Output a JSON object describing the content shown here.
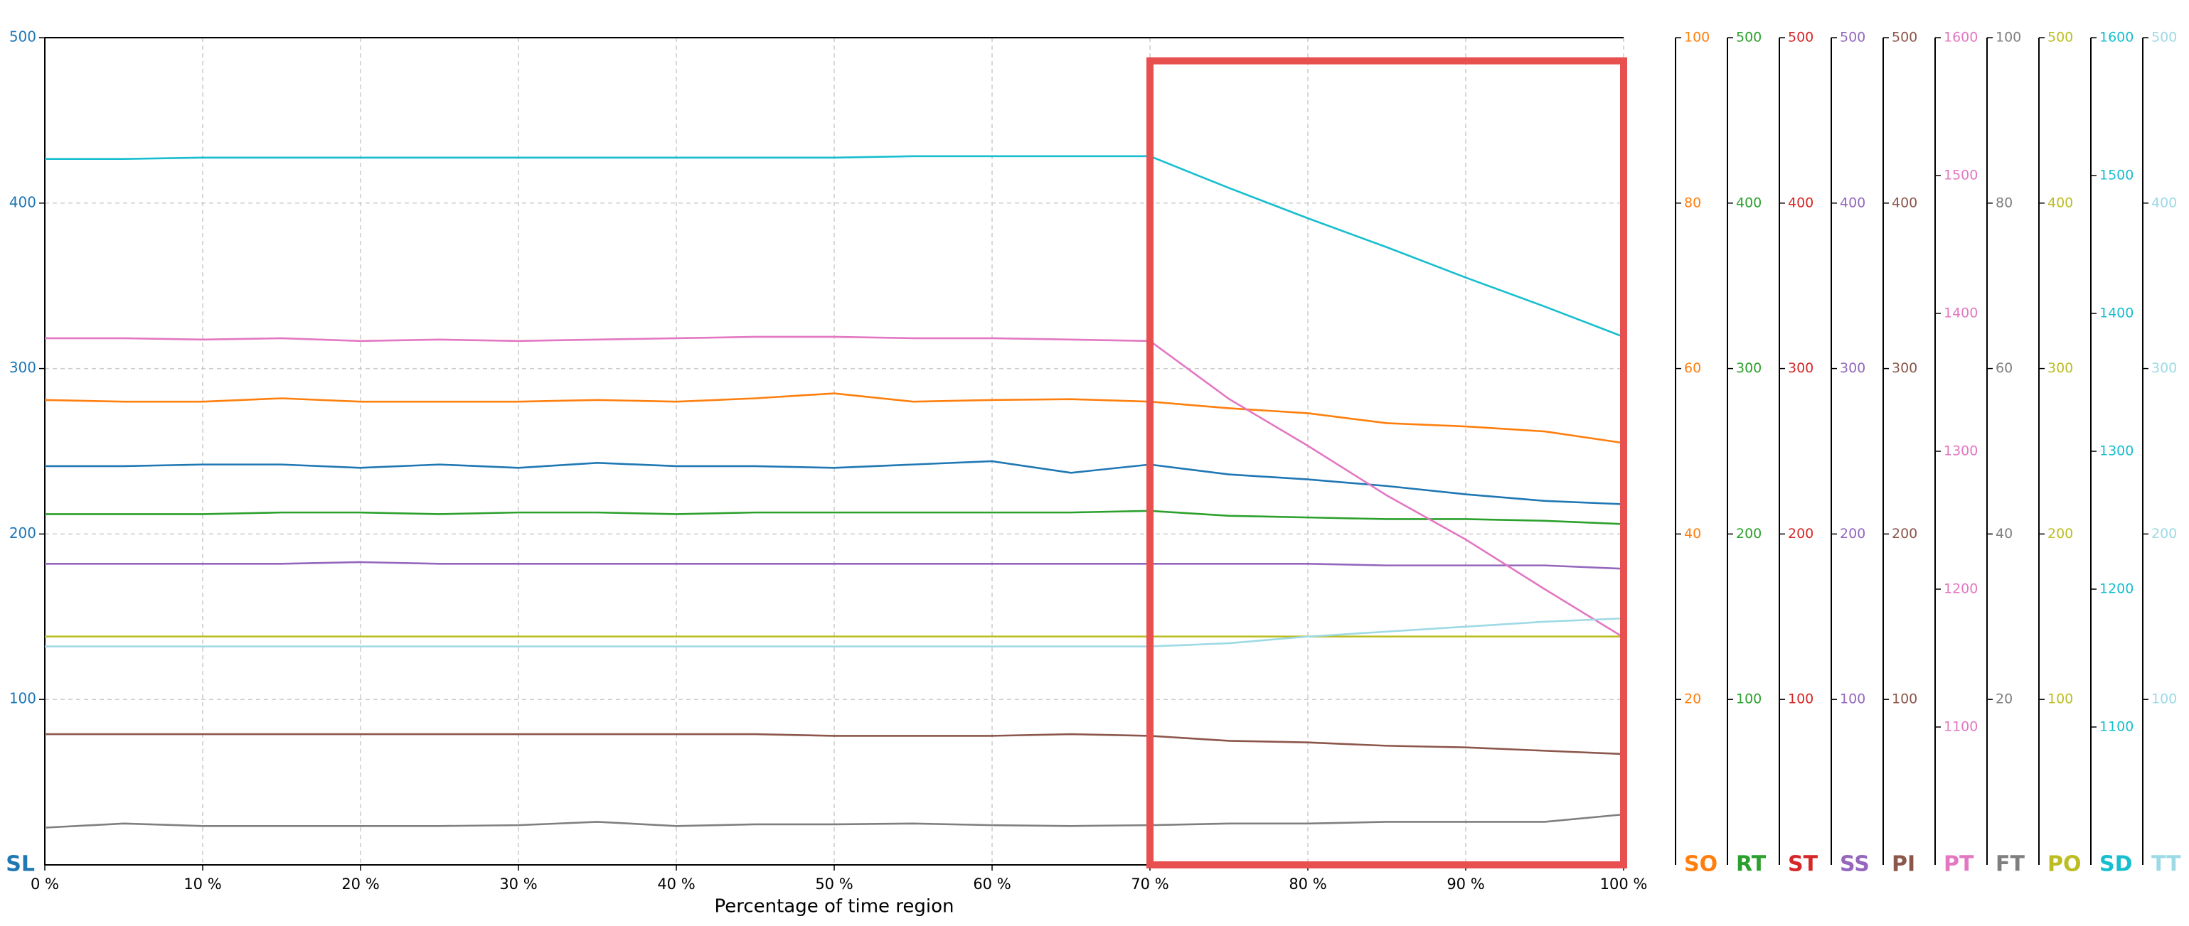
{
  "chart_data": {
    "type": "line",
    "xlabel": "Percentage of time region",
    "x": [
      0,
      5,
      10,
      15,
      20,
      25,
      30,
      35,
      40,
      45,
      50,
      55,
      60,
      65,
      70,
      75,
      80,
      85,
      90,
      95,
      100
    ],
    "xlim": [
      0,
      100
    ],
    "xticks": [
      {
        "value": 0,
        "label": "0 %"
      },
      {
        "value": 10,
        "label": "10 %"
      },
      {
        "value": 20,
        "label": "20 %"
      },
      {
        "value": 30,
        "label": "30 %"
      },
      {
        "value": 40,
        "label": "40 %"
      },
      {
        "value": 50,
        "label": "50 %"
      },
      {
        "value": 60,
        "label": "60 %"
      },
      {
        "value": 70,
        "label": "70 %"
      },
      {
        "value": 80,
        "label": "80 %"
      },
      {
        "value": 90,
        "label": "90 %"
      },
      {
        "value": 100,
        "label": "100 %"
      }
    ],
    "grid": true,
    "highlight": {
      "xlim": [
        70,
        100
      ],
      "ylim": [
        0,
        486
      ],
      "color": "#e8504f"
    },
    "axes": [
      {
        "name": "SL",
        "color": "#1f77b4",
        "ylim": [
          0,
          500
        ],
        "yticks": [
          100,
          200,
          300,
          400,
          500
        ],
        "values": [
          241,
          241,
          242,
          242,
          240,
          242,
          240,
          243,
          241,
          241,
          240,
          242,
          244,
          237,
          242,
          236,
          233,
          229,
          224,
          220,
          218
        ]
      },
      {
        "name": "SO",
        "color": "#ff7f0e",
        "ylim": [
          0,
          100
        ],
        "yticks": [
          20,
          40,
          60,
          80,
          100
        ],
        "values": [
          56.2,
          56,
          56,
          56.4,
          56,
          56,
          56,
          56.2,
          56,
          56.4,
          57,
          56,
          56.2,
          56.3,
          56,
          55.2,
          54.6,
          53.4,
          53,
          52.4,
          51
        ]
      },
      {
        "name": "RT",
        "color": "#2ca02c",
        "ylim": [
          0,
          500
        ],
        "yticks": [
          100,
          200,
          300,
          400,
          500
        ],
        "values": [
          212,
          212,
          212,
          213,
          213,
          212,
          213,
          213,
          212,
          213,
          213,
          213,
          213,
          213,
          214,
          211,
          210,
          209,
          209,
          208,
          206
        ]
      },
      {
        "name": "ST",
        "color": "#d62728",
        "ylim": [
          0,
          500
        ],
        "yticks": [
          100,
          200,
          300,
          400,
          500
        ]
      },
      {
        "name": "SS",
        "color": "#9467bd",
        "ylim": [
          0,
          500
        ],
        "yticks": [
          100,
          200,
          300,
          400,
          500
        ],
        "values": [
          182,
          182,
          182,
          182,
          183,
          182,
          182,
          182,
          182,
          182,
          182,
          182,
          182,
          182,
          182,
          182,
          182,
          181,
          181,
          181,
          179
        ]
      },
      {
        "name": "PI",
        "color": "#8c564b",
        "ylim": [
          0,
          500
        ],
        "yticks": [
          100,
          200,
          300,
          400,
          500
        ],
        "values": [
          79,
          79,
          79,
          79,
          79,
          79,
          79,
          79,
          79,
          79,
          78,
          78,
          78,
          79,
          78,
          75,
          74,
          72,
          71,
          69,
          67
        ]
      },
      {
        "name": "PT",
        "color": "#e377c2",
        "ylim": [
          1000,
          1600
        ],
        "yticks": [
          1100,
          1200,
          1300,
          1400,
          1500,
          1600
        ],
        "values": [
          1382,
          1382,
          1381,
          1382,
          1380,
          1381,
          1380,
          1381,
          1382,
          1383,
          1383,
          1382,
          1382,
          1381,
          1380,
          1338,
          1304,
          1268,
          1236,
          1200,
          1165
        ]
      },
      {
        "name": "FT",
        "color": "#7f7f7f",
        "ylim": [
          0,
          100
        ],
        "yticks": [
          20,
          40,
          60,
          80,
          100
        ],
        "values": [
          4.5,
          5,
          4.7,
          4.7,
          4.7,
          4.7,
          4.8,
          5.2,
          4.7,
          4.9,
          4.9,
          5,
          4.8,
          4.7,
          4.8,
          5,
          5,
          5.2,
          5.2,
          5.2,
          6.1
        ]
      },
      {
        "name": "PO",
        "color": "#bcbd22",
        "ylim": [
          0,
          500
        ],
        "yticks": [
          100,
          200,
          300,
          400,
          500
        ],
        "values": [
          138,
          138,
          138,
          138,
          138,
          138,
          138,
          138,
          138,
          138,
          138,
          138,
          138,
          138,
          138,
          138,
          138,
          138,
          138,
          138,
          138
        ]
      },
      {
        "name": "SD",
        "color": "#17becf",
        "ylim": [
          1000,
          1600
        ],
        "yticks": [
          1100,
          1200,
          1300,
          1400,
          1500,
          1600
        ],
        "values": [
          1512,
          1512,
          1513,
          1513,
          1513,
          1513,
          1513,
          1513,
          1513,
          1513,
          1513,
          1514,
          1514,
          1514,
          1514,
          1491,
          1469,
          1448,
          1426,
          1405,
          1383
        ]
      },
      {
        "name": "TT",
        "color": "#9edae5",
        "ylim": [
          0,
          500
        ],
        "yticks": [
          100,
          200,
          300,
          400,
          500
        ],
        "values": [
          132,
          132,
          132,
          132,
          132,
          132,
          132,
          132,
          132,
          132,
          132,
          132,
          132,
          132,
          132,
          134,
          138,
          141,
          144,
          147,
          149
        ]
      }
    ]
  }
}
